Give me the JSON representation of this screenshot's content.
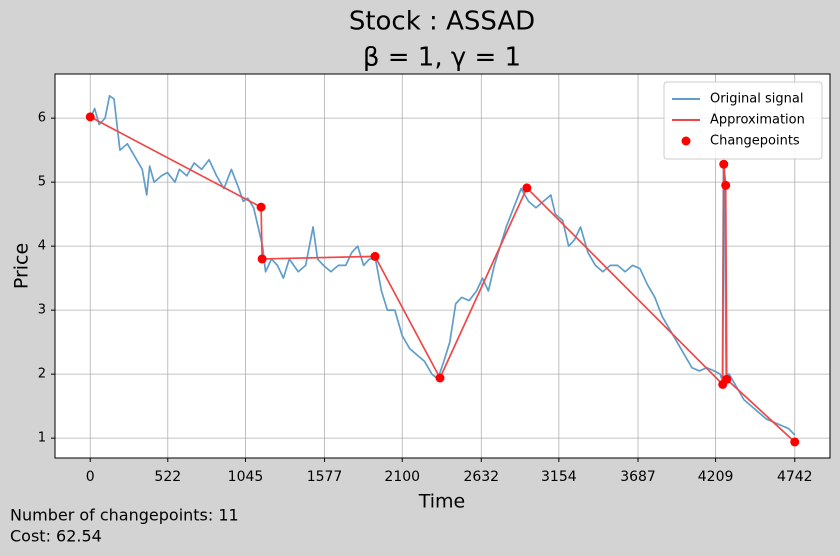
{
  "chart_data": {
    "type": "line",
    "title": "Stock : ASSAD",
    "subtitle": "β = 1, γ = 1",
    "x_label": "Time",
    "y_label": "Price",
    "annotations": [
      "Number of changepoints: 11",
      "Cost: 62.54"
    ],
    "xlim": [
      -237.1,
      4979.1
    ],
    "ylim": [
      0.69,
      6.69
    ],
    "xticks": [
      0,
      522,
      1045,
      1577,
      2100,
      2632,
      3154,
      3687,
      4209,
      4742
    ],
    "yticks": [
      1,
      2,
      3,
      4,
      5,
      6
    ],
    "grid": true,
    "legend": "upper right",
    "series": [
      {
        "name": "Original signal",
        "type": "line",
        "color": "#5f9ecb",
        "x": [
          0,
          30,
          60,
          100,
          130,
          160,
          200,
          250,
          300,
          350,
          380,
          400,
          430,
          480,
          520,
          570,
          600,
          650,
          700,
          750,
          800,
          850,
          900,
          950,
          1000,
          1030,
          1060,
          1100,
          1130,
          1160,
          1180,
          1220,
          1260,
          1300,
          1340,
          1400,
          1450,
          1500,
          1530,
          1570,
          1620,
          1670,
          1720,
          1760,
          1800,
          1840,
          1880,
          1920,
          1960,
          2000,
          2050,
          2100,
          2150,
          2200,
          2250,
          2300,
          2340,
          2380,
          2420,
          2460,
          2500,
          2550,
          2600,
          2640,
          2680,
          2720,
          2760,
          2800,
          2850,
          2900,
          2950,
          3000,
          3050,
          3100,
          3130,
          3180,
          3220,
          3260,
          3300,
          3350,
          3400,
          3450,
          3500,
          3550,
          3600,
          3650,
          3700,
          3750,
          3800,
          3850,
          3900,
          3950,
          4000,
          4050,
          4100,
          4150,
          4200,
          4240,
          4255,
          4262,
          4270,
          4280,
          4300,
          4350,
          4400,
          4450,
          4500,
          4550,
          4600,
          4650,
          4700,
          4742
        ],
        "values": [
          6.0,
          6.15,
          5.9,
          6.0,
          6.35,
          6.3,
          5.5,
          5.6,
          5.4,
          5.2,
          4.8,
          5.25,
          5.0,
          5.1,
          5.15,
          5.0,
          5.2,
          5.1,
          5.3,
          5.2,
          5.35,
          5.1,
          4.9,
          5.2,
          4.9,
          4.7,
          4.75,
          4.6,
          4.3,
          4.0,
          3.6,
          3.8,
          3.7,
          3.5,
          3.8,
          3.6,
          3.7,
          4.3,
          3.8,
          3.7,
          3.6,
          3.7,
          3.7,
          3.9,
          4.0,
          3.7,
          3.8,
          3.8,
          3.3,
          3.0,
          3.0,
          2.6,
          2.4,
          2.3,
          2.2,
          2.0,
          1.93,
          2.2,
          2.5,
          3.1,
          3.2,
          3.15,
          3.3,
          3.5,
          3.3,
          3.7,
          4.0,
          4.3,
          4.6,
          4.9,
          4.7,
          4.6,
          4.7,
          4.8,
          4.5,
          4.4,
          4.0,
          4.1,
          4.3,
          3.9,
          3.7,
          3.6,
          3.7,
          3.7,
          3.6,
          3.7,
          3.65,
          3.4,
          3.2,
          2.9,
          2.7,
          2.5,
          2.3,
          2.1,
          2.05,
          2.1,
          2.05,
          2.0,
          1.9,
          5.25,
          4.9,
          2.0,
          2.0,
          1.8,
          1.6,
          1.5,
          1.4,
          1.3,
          1.25,
          1.2,
          1.15,
          1.05
        ]
      },
      {
        "name": "Approximation",
        "type": "line",
        "color": "#f04848",
        "x": [
          0,
          1150,
          1157,
          1917,
          2354,
          2939,
          4257,
          4264,
          4277,
          4284,
          4742
        ],
        "values": [
          6.02,
          4.61,
          3.8,
          3.84,
          1.94,
          4.91,
          1.84,
          5.28,
          4.95,
          1.92,
          0.94
        ]
      },
      {
        "name": "Changepoints",
        "type": "scatter",
        "color": "#ff0000",
        "x": [
          0,
          1150,
          1157,
          1917,
          2354,
          2939,
          4257,
          4264,
          4277,
          4284,
          4742
        ],
        "values": [
          6.02,
          4.61,
          3.8,
          3.84,
          1.94,
          4.91,
          1.84,
          5.28,
          4.95,
          1.92,
          0.94
        ]
      }
    ]
  }
}
